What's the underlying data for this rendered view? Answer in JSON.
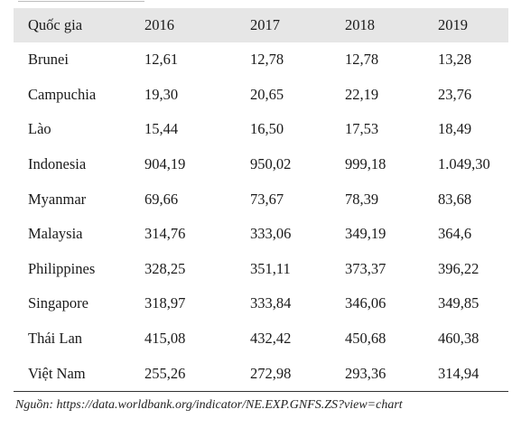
{
  "table": {
    "headers": [
      "Quốc gia",
      "2016",
      "2017",
      "2018",
      "2019"
    ],
    "rows": [
      [
        "Brunei",
        "12,61",
        "12,78",
        "12,78",
        "13,28"
      ],
      [
        "Campuchia",
        "19,30",
        "20,65",
        "22,19",
        "23,76"
      ],
      [
        "Lào",
        "15,44",
        "16,50",
        "17,53",
        "18,49"
      ],
      [
        "Indonesia",
        "904,19",
        "950,02",
        "999,18",
        "1.049,30"
      ],
      [
        "Myanmar",
        "69,66",
        "73,67",
        "78,39",
        "83,68"
      ],
      [
        "Malaysia",
        "314,76",
        "333,06",
        "349,19",
        "364,6"
      ],
      [
        "Philippines",
        "328,25",
        "351,11",
        "373,37",
        "396,22"
      ],
      [
        "Singapore",
        "318,97",
        "333,84",
        "346,06",
        "349,85"
      ],
      [
        "Thái Lan",
        "415,08",
        "432,42",
        "450,68",
        "460,38"
      ],
      [
        "Việt Nam",
        "255,26",
        "272,98",
        "293,36",
        "314,94"
      ]
    ]
  },
  "source": "Nguồn: https://data.worldbank.org/indicator/NE.EXP.GNFS.ZS?view=chart",
  "colors": {
    "header_background": "#e6e6e6",
    "rule": "#333333",
    "text": "#1a1a1a"
  }
}
